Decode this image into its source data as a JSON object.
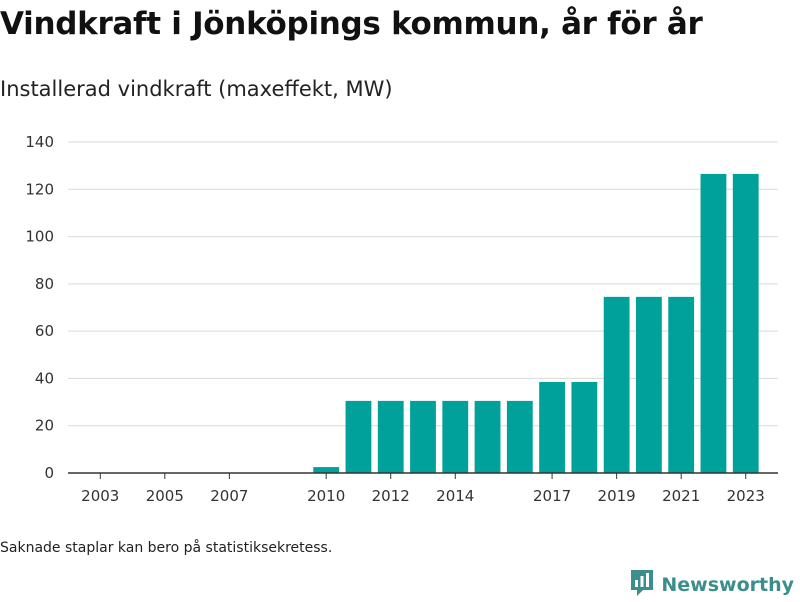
{
  "header": {
    "title": "Vindkraft i Jönköpings kommun, år för år",
    "subtitle": "Installerad vindkraft (maxeffekt, MW)"
  },
  "footer": {
    "note": "Saknade staplar kan bero på statistiksekretess.",
    "brand": "Newsworthy",
    "brand_icon": "newsworthy-logo-icon"
  },
  "colors": {
    "bar": "#00a19a",
    "grid": "#d9d9d9",
    "axis": "#333333",
    "brand": "#3a8f8c"
  },
  "chart_data": {
    "type": "bar",
    "categories": [
      2010,
      2011,
      2012,
      2013,
      2014,
      2015,
      2016,
      2017,
      2018,
      2019,
      2020,
      2021,
      2022,
      2023
    ],
    "values": [
      2.5,
      30.5,
      30.5,
      30.5,
      30.5,
      30.5,
      30.5,
      38.5,
      38.5,
      74.5,
      74.5,
      74.5,
      126.5,
      126.5
    ],
    "x_ticks": [
      "2003",
      "2005",
      "2007",
      "2010",
      "2012",
      "2014",
      "2017",
      "2019",
      "2021",
      "2023"
    ],
    "x_range": [
      2002,
      2024
    ],
    "ylim": [
      0,
      140
    ],
    "y_ticks": [
      "0",
      "20",
      "40",
      "60",
      "80",
      "100",
      "120",
      "140"
    ],
    "title": "Vindkraft i Jönköpings kommun, år för år",
    "subtitle": "Installerad vindkraft (maxeffekt, MW)",
    "xlabel": "",
    "ylabel": "",
    "grid": true,
    "legend": "none"
  }
}
